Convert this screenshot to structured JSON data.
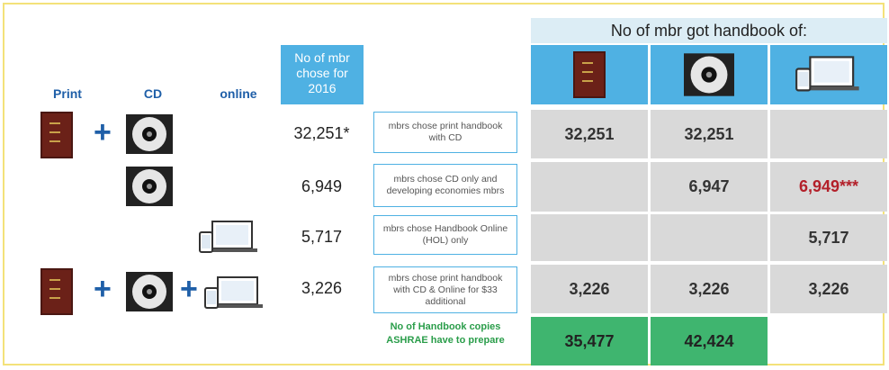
{
  "legend": {
    "print": "Print",
    "cd": "CD",
    "online": "online"
  },
  "count_header": "No of mbr chose for 2016",
  "group_header": "No of mbr got handbook of:",
  "rows": [
    {
      "count": "32,251*",
      "description": "mbrs chose print handbook with CD",
      "cells": [
        "32,251",
        "32,251",
        null
      ]
    },
    {
      "count": "6,949",
      "description": "mbrs chose CD only and developing economies mbrs",
      "cells": [
        null,
        "6,947",
        "6,949***"
      ]
    },
    {
      "count": "5,717",
      "description": "mbrs chose Handbook Online (HOL) only",
      "cells": [
        null,
        null,
        "5,717"
      ]
    },
    {
      "count": "3,226",
      "description": "mbrs chose print handbook with CD & Online for $33 additional",
      "cells": [
        "3,226",
        "3,226",
        "3,226"
      ]
    }
  ],
  "total": {
    "label": "No of Handbook copies ASHRAE have to prepare",
    "cells": [
      "35,477",
      "42,424",
      null
    ]
  }
}
